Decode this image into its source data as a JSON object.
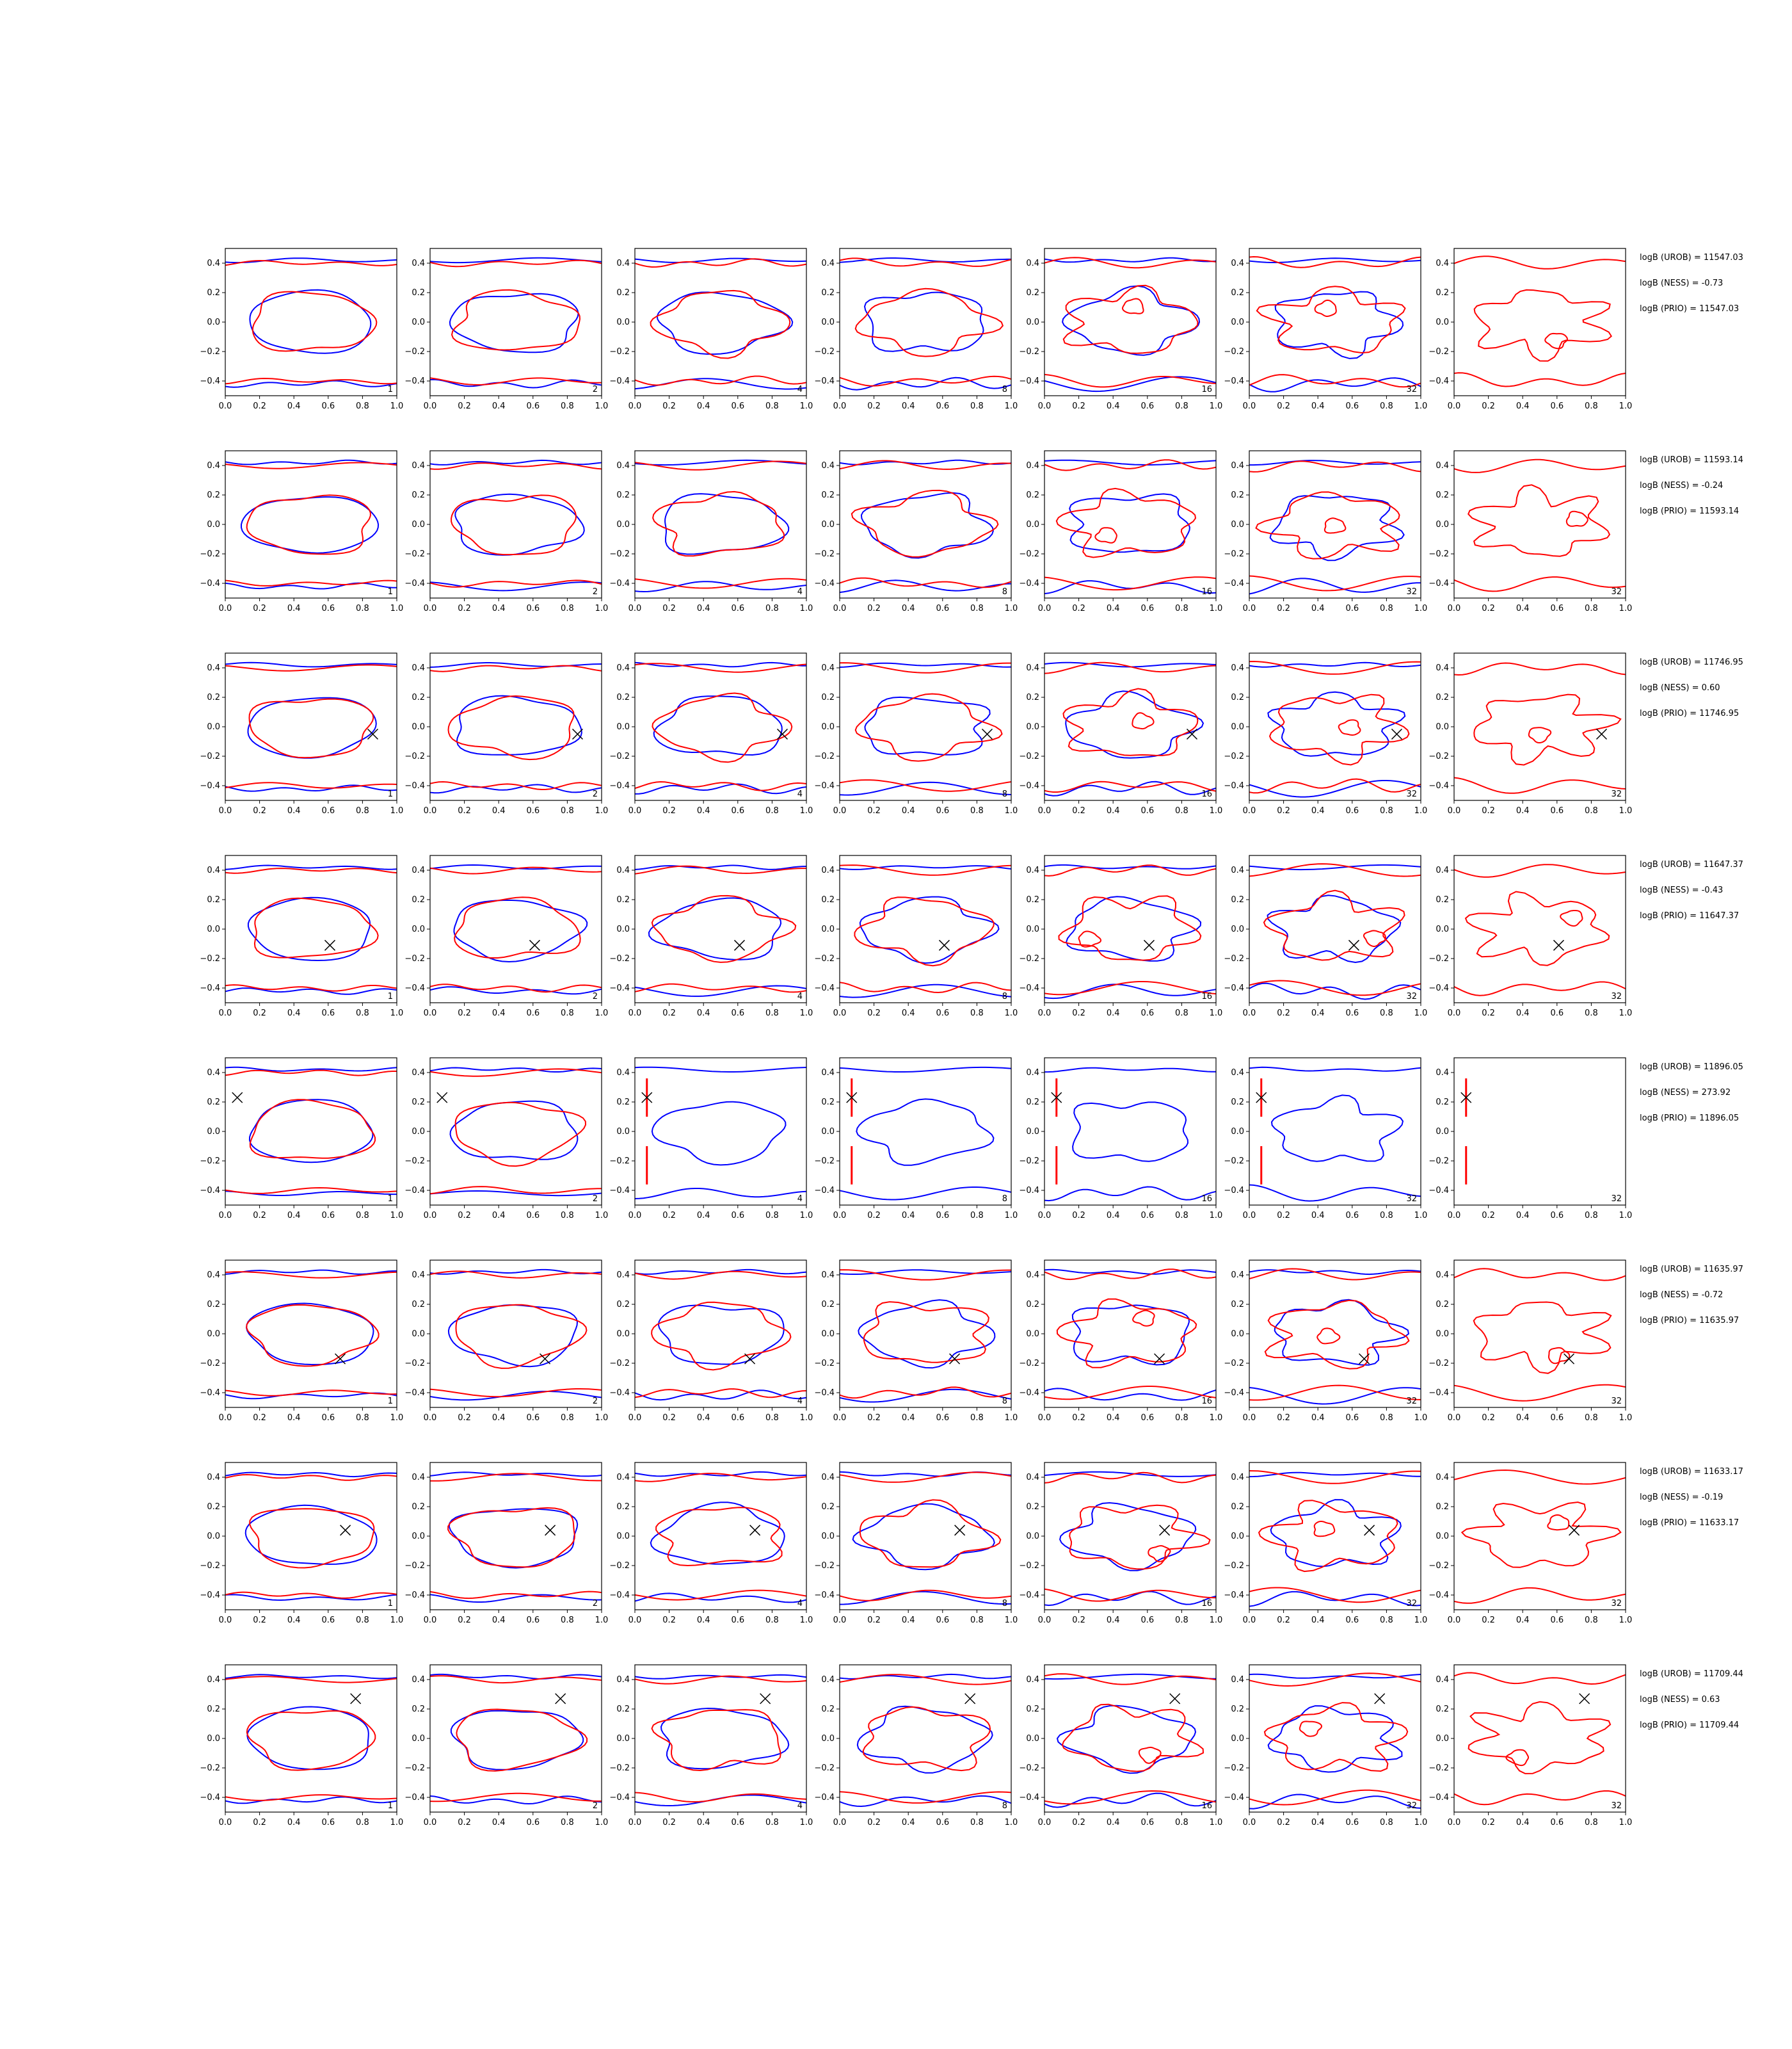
{
  "chart_data": {
    "type": "line",
    "layout": "8 rows x 7 columns of contour panels",
    "xlim": [
      0.0,
      1.0
    ],
    "ylim": [
      -0.5,
      0.5
    ],
    "x_ticks": [
      "0.0",
      "0.2",
      "0.4",
      "0.6",
      "0.8",
      "1.0"
    ],
    "y_ticks": [
      "0.4",
      "0.2",
      "0.0",
      "−0.2",
      "−0.4"
    ],
    "y_tick_values": [
      0.4,
      0.2,
      0.0,
      -0.2,
      -0.4
    ],
    "x_tick_values": [
      0.0,
      0.2,
      0.4,
      0.6,
      0.8,
      1.0
    ],
    "column_labels": [
      "1",
      "2",
      "4",
      "8",
      "16",
      "32",
      "32"
    ],
    "colors": {
      "contour_a": "#0000ff",
      "contour_b": "#ff0000",
      "marker": "#000000"
    },
    "rows": [
      {
        "marker": null,
        "stats": [
          "logB (UROB) = 11547.03",
          "logB (NESS) = -0.73",
          "logB (PRIO) = 11547.03"
        ],
        "panel_labels": [
          "1",
          "2",
          "4",
          "8",
          "16",
          "32",
          ""
        ]
      },
      {
        "marker": null,
        "stats": [
          "logB (UROB) = 11593.14",
          "logB (NESS) = -0.24",
          "logB (PRIO) = 11593.14"
        ],
        "panel_labels": [
          "1",
          "2",
          "4",
          "8",
          "16",
          "32",
          "32"
        ]
      },
      {
        "marker": [
          0.86,
          -0.05
        ],
        "stats": [
          "logB (UROB) = 11746.95",
          "logB (NESS) = 0.60",
          "logB (PRIO) = 11746.95"
        ],
        "panel_labels": [
          "1",
          "2",
          "4",
          "8",
          "16",
          "32",
          "32"
        ]
      },
      {
        "marker": [
          0.61,
          -0.11
        ],
        "stats": [
          "logB (UROB) = 11647.37",
          "logB (NESS) = -0.43",
          "logB (PRIO) = 11647.37"
        ],
        "panel_labels": [
          "1",
          "2",
          "4",
          "8",
          "16",
          "32",
          "32"
        ]
      },
      {
        "marker": [
          0.07,
          0.23
        ],
        "stats": [
          "logB (UROB) = 11896.05",
          "logB (NESS) = 273.92",
          "logB (PRIO) = 11896.05"
        ],
        "panel_labels": [
          "1",
          "2",
          "4",
          "8",
          "16",
          "32",
          "32"
        ]
      },
      {
        "marker": [
          0.67,
          -0.17
        ],
        "stats": [
          "logB (UROB) = 11635.97",
          "logB (NESS) = -0.72",
          "logB (PRIO) = 11635.97"
        ],
        "panel_labels": [
          "1",
          "2",
          "4",
          "8",
          "16",
          "32",
          "32"
        ]
      },
      {
        "marker": [
          0.7,
          0.04
        ],
        "stats": [
          "logB (UROB) = 11633.17",
          "logB (NESS) = -0.19",
          "logB (PRIO) = 11633.17"
        ],
        "panel_labels": [
          "1",
          "2",
          "4",
          "8",
          "16",
          "32",
          "32"
        ]
      },
      {
        "marker": [
          0.76,
          0.27
        ],
        "stats": [
          "logB (UROB) = 11709.44",
          "logB (NESS) = 0.63",
          "logB (PRIO) = 11709.44"
        ],
        "panel_labels": [
          "1",
          "2",
          "4",
          "8",
          "16",
          "32",
          "32"
        ]
      }
    ]
  }
}
